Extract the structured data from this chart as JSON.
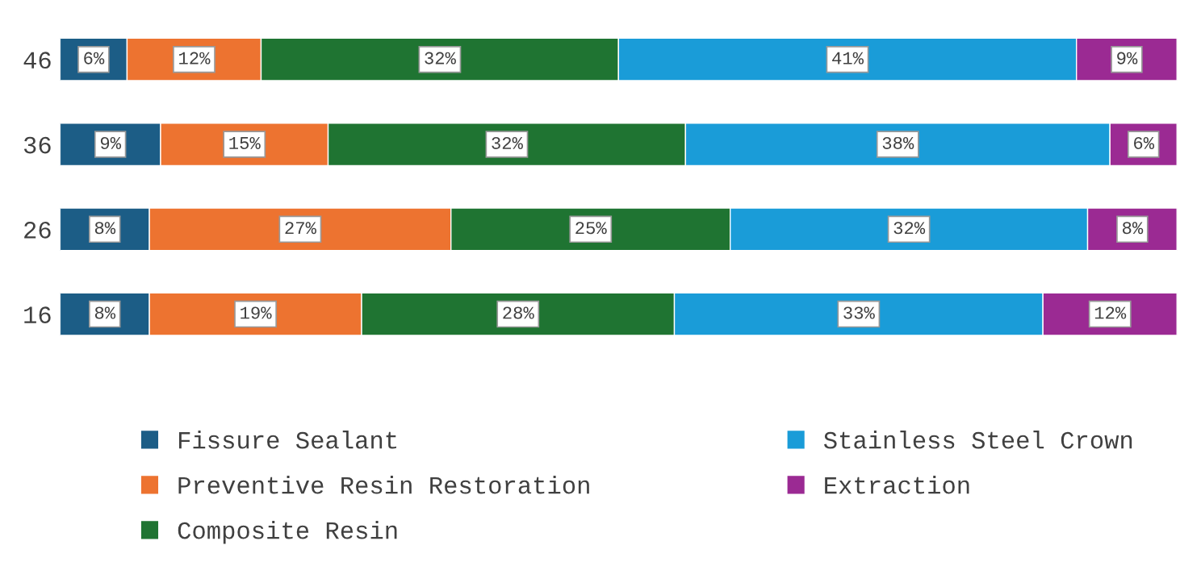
{
  "chart_data": {
    "type": "bar",
    "orientation": "horizontal",
    "stacked": true,
    "categories": [
      "46",
      "36",
      "26",
      "16"
    ],
    "series": [
      {
        "name": "Fissure Sealant",
        "color": "#1c5d86",
        "values": [
          6,
          9,
          8,
          8
        ],
        "value_labels": [
          "6%",
          "9%",
          "8%",
          "8%"
        ]
      },
      {
        "name": "Preventive Resin Restoration",
        "color": "#ed7330",
        "values": [
          12,
          15,
          27,
          19
        ],
        "value_labels": [
          "12%",
          "15%",
          "27%",
          "19%"
        ]
      },
      {
        "name": "Composite Resin",
        "color": "#1f7432",
        "values": [
          32,
          32,
          25,
          28
        ],
        "value_labels": [
          "32%",
          "32%",
          "25%",
          "28%"
        ]
      },
      {
        "name": "Stainless Steel Crown",
        "color": "#1a9cd8",
        "values": [
          41,
          38,
          32,
          33
        ],
        "value_labels": [
          "41%",
          "38%",
          "32%",
          "33%"
        ]
      },
      {
        "name": "Extraction",
        "color": "#9b2a93",
        "values": [
          9,
          6,
          8,
          12
        ],
        "value_labels": [
          "9%",
          "6%",
          "8%",
          "12%"
        ]
      }
    ],
    "legend": "bottom",
    "grid": false
  }
}
